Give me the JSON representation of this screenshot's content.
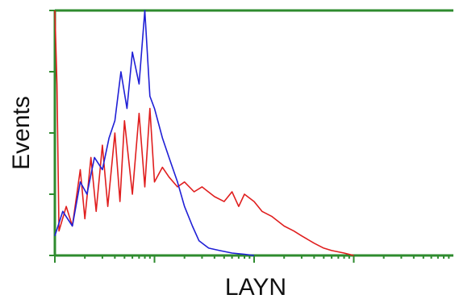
{
  "chart_data": {
    "type": "line",
    "title": "",
    "xlabel": "LAYN",
    "ylabel": "Events",
    "x_scale": "log",
    "xlim": [
      1,
      10000
    ],
    "ylim": [
      0,
      100
    ],
    "grid": false,
    "legend": "none",
    "frame_color": "#2e8b2e",
    "series": [
      {
        "color": "#1f1fd6",
        "x": [
          1,
          1.2,
          1.5,
          1.8,
          2.1,
          2.5,
          3,
          3.5,
          4,
          4.6,
          5.3,
          6,
          7,
          8,
          9,
          10,
          12,
          14,
          17,
          20,
          24,
          28,
          35,
          45,
          60,
          80,
          100
        ],
        "y": [
          8,
          18,
          12,
          30,
          25,
          40,
          35,
          48,
          55,
          75,
          60,
          83,
          70,
          100,
          65,
          60,
          48,
          40,
          30,
          20,
          12,
          6,
          3,
          2,
          1,
          0.5,
          0
        ]
      },
      {
        "color": "#e01e1e",
        "x": [
          1,
          1.05,
          1.1,
          1.3,
          1.5,
          1.8,
          2,
          2.3,
          2.6,
          3,
          3.4,
          4,
          4.5,
          5,
          6,
          7,
          8,
          9,
          10,
          12,
          14,
          17,
          20,
          25,
          30,
          40,
          50,
          60,
          70,
          80,
          100,
          120,
          150,
          200,
          250,
          300,
          400,
          500,
          600,
          800,
          1000
        ],
        "y": [
          100,
          70,
          10,
          20,
          12,
          35,
          15,
          40,
          18,
          45,
          20,
          50,
          22,
          55,
          25,
          58,
          28,
          60,
          30,
          36,
          32,
          28,
          30,
          26,
          28,
          24,
          22,
          26,
          20,
          25,
          22,
          18,
          16,
          12,
          10,
          8,
          5,
          3,
          2,
          1,
          0
        ]
      }
    ]
  }
}
